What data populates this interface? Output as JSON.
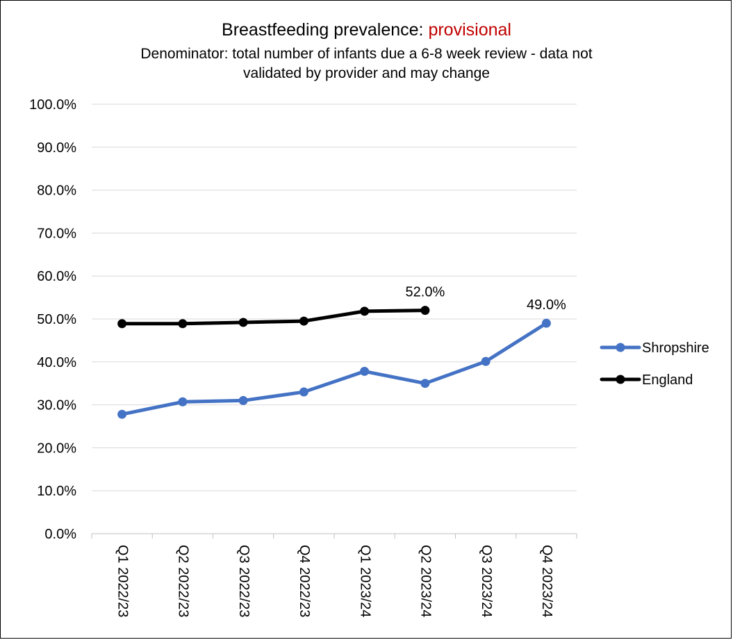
{
  "title": {
    "main": "Breastfeeding prevalence: ",
    "highlight": "provisional",
    "highlight_color": "#c00000"
  },
  "subtitle": {
    "line1": "Denominator: total number of infants due a 6-8 week review - data not",
    "line2": "validated by provider and may change"
  },
  "chart_data": {
    "type": "line",
    "categories": [
      "Q1 2022/23",
      "Q2 2022/23",
      "Q3 2022/23",
      "Q4 2022/23",
      "Q1 2023/24",
      "Q2 2023/24",
      "Q3 2023/24",
      "Q4 2023/24"
    ],
    "series": [
      {
        "name": "Shropshire",
        "color": "#4472c4",
        "values": [
          27.8,
          30.7,
          31.0,
          33.0,
          37.8,
          35.0,
          40.1,
          49.0
        ]
      },
      {
        "name": "England",
        "color": "#000000",
        "values": [
          48.9,
          48.9,
          49.2,
          49.5,
          51.8,
          52.0,
          null,
          null
        ]
      }
    ],
    "data_labels": [
      {
        "series": "England",
        "category": "Q2 2023/24",
        "text": "52.0%"
      },
      {
        "series": "Shropshire",
        "category": "Q4 2023/24",
        "text": "49.0%"
      }
    ],
    "y_ticks": [
      "0.0%",
      "10.0%",
      "20.0%",
      "30.0%",
      "40.0%",
      "50.0%",
      "60.0%",
      "70.0%",
      "80.0%",
      "90.0%",
      "100.0%"
    ],
    "ylim": [
      0,
      100
    ],
    "grid": true,
    "legend_position": "right"
  }
}
